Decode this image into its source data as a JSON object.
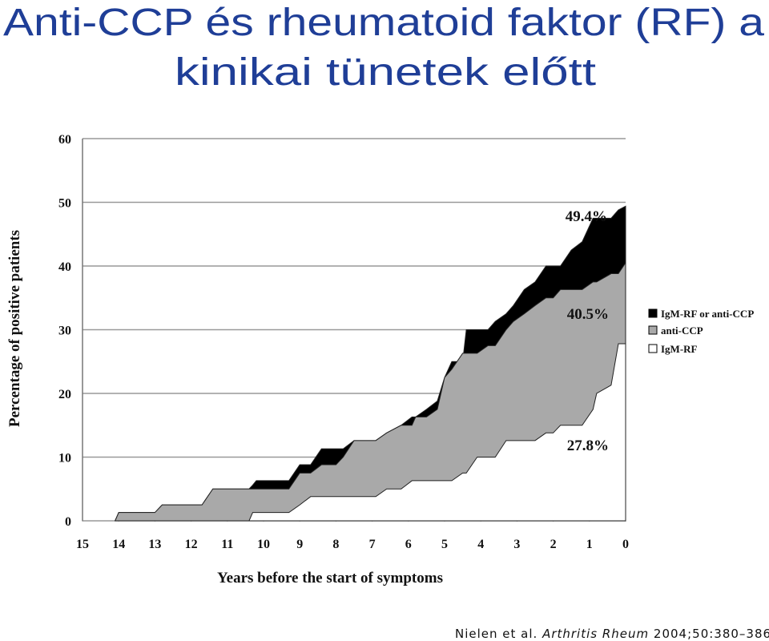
{
  "slide": {
    "title_lines": [
      "Anti-CCP és rheumatoid faktor (RF) a",
      "kinikai tünetek előtt"
    ],
    "citation": {
      "authors": "Nielen et al.",
      "journal": "Arthritis Rheum",
      "ref": "2004;50:380–386"
    }
  },
  "chart_data": {
    "type": "area",
    "x_label": "Years before the start of symptoms",
    "y_label": "Percentage of positive patients",
    "annotations": [
      "49.4%",
      "40.5%",
      "27.8%"
    ],
    "xlim": [
      15,
      0
    ],
    "xticks": [
      15,
      14,
      13,
      12,
      11,
      10,
      9,
      8,
      7,
      6,
      5,
      4,
      3,
      2,
      1,
      0
    ],
    "ylim": [
      0,
      60
    ],
    "yticks": [
      0,
      10,
      20,
      30,
      40,
      50,
      60
    ],
    "grid": true,
    "legend": "right",
    "x": [
      14.1,
      14.0,
      13.0,
      12.8,
      11.7,
      11.4,
      10.4,
      10.3,
      10.2,
      9.3,
      9.0,
      8.7,
      8.4,
      8.0,
      7.8,
      7.5,
      6.9,
      6.6,
      6.2,
      5.9,
      5.8,
      5.5,
      5.2,
      5.0,
      4.8,
      4.5,
      4.4,
      4.1,
      3.8,
      3.6,
      3.3,
      3.1,
      2.8,
      2.5,
      2.2,
      2.0,
      1.8,
      1.5,
      1.2,
      0.9,
      0.8,
      0.4,
      0.2,
      0
    ],
    "series": [
      {
        "name": "IgM-RF or anti-CCP",
        "color": "#000000",
        "values": [
          0,
          1.3,
          1.3,
          2.5,
          2.5,
          5,
          5,
          5.6,
          6.3,
          6.3,
          8.8,
          8.8,
          11.3,
          11.3,
          11.3,
          12.6,
          12.6,
          13.8,
          15,
          16.3,
          16.3,
          17.5,
          18.8,
          22.5,
          25,
          25,
          30,
          30,
          30,
          31.3,
          32.5,
          33.8,
          36.3,
          37.5,
          40,
          40,
          40,
          42.5,
          43.8,
          47.5,
          47.5,
          47.5,
          48.8,
          49.4
        ]
      },
      {
        "name": "anti-CCP",
        "color": "#a9a9a9",
        "values": [
          0,
          1.3,
          1.3,
          2.5,
          2.5,
          5,
          5,
          5,
          5,
          5,
          7.5,
          7.5,
          8.8,
          8.8,
          10,
          12.6,
          12.6,
          13.8,
          15,
          15,
          16.3,
          16.3,
          17.5,
          22.5,
          23.8,
          26.3,
          26.3,
          26.3,
          27.5,
          27.5,
          30,
          31.3,
          32.5,
          33.8,
          35,
          35,
          36.3,
          36.3,
          36.3,
          37.5,
          37.5,
          38.8,
          38.8,
          40.5
        ]
      },
      {
        "name": "IgM-RF",
        "color": "#ffffff",
        "values": [
          null,
          null,
          null,
          null,
          null,
          null,
          0,
          1.3,
          1.3,
          1.3,
          2.5,
          3.8,
          3.8,
          3.8,
          3.8,
          3.8,
          3.8,
          5,
          5,
          6.3,
          6.3,
          6.3,
          6.3,
          6.3,
          6.3,
          7.5,
          7.5,
          10,
          10,
          10,
          12.6,
          12.6,
          12.6,
          12.6,
          13.8,
          13.8,
          15,
          15,
          15,
          17.5,
          20,
          21.3,
          27.8,
          27.8
        ]
      }
    ]
  }
}
